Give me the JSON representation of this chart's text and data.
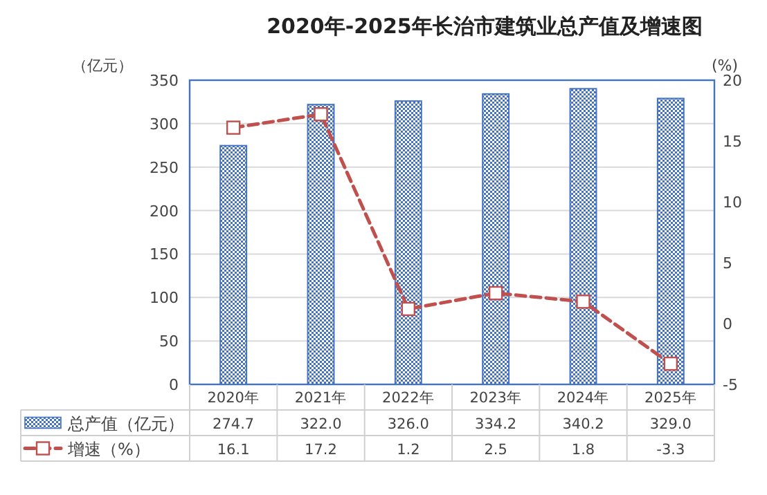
{
  "chart_data": {
    "type": "bar",
    "title": "2020年-2025年长治市建筑业总产值及增速图",
    "ylabel": "（亿元）",
    "y2label": "(%)",
    "categories": [
      "2020年",
      "2021年",
      "2022年",
      "2023年",
      "2024年",
      "2025年"
    ],
    "series": [
      {
        "name": "总产值（亿元）",
        "color": "#4472c4",
        "values": [
          274.7,
          322.0,
          326.0,
          334.2,
          340.2,
          329.0
        ],
        "value_labels": [
          "274.7",
          "322.0",
          "326.0",
          "334.2",
          "340.2",
          "329.0"
        ]
      },
      {
        "name": "增速（%）",
        "type": "line",
        "axis": "y2",
        "color": "#c0504d",
        "marker": "square",
        "line_style": "dashed",
        "values": [
          16.1,
          17.2,
          1.2,
          2.5,
          1.8,
          -3.3
        ],
        "value_labels": [
          "16.1",
          "17.2",
          "1.2",
          "2.5",
          "1.8",
          "-3.3"
        ]
      }
    ],
    "ylim": [
      0,
      350
    ],
    "yticks": [
      0,
      50,
      100,
      150,
      200,
      250,
      300,
      350
    ],
    "y2lim": [
      -5,
      20
    ],
    "y2ticks": [
      -5,
      0,
      5,
      10,
      15,
      20
    ],
    "grid": "y",
    "legend": "bottom"
  }
}
